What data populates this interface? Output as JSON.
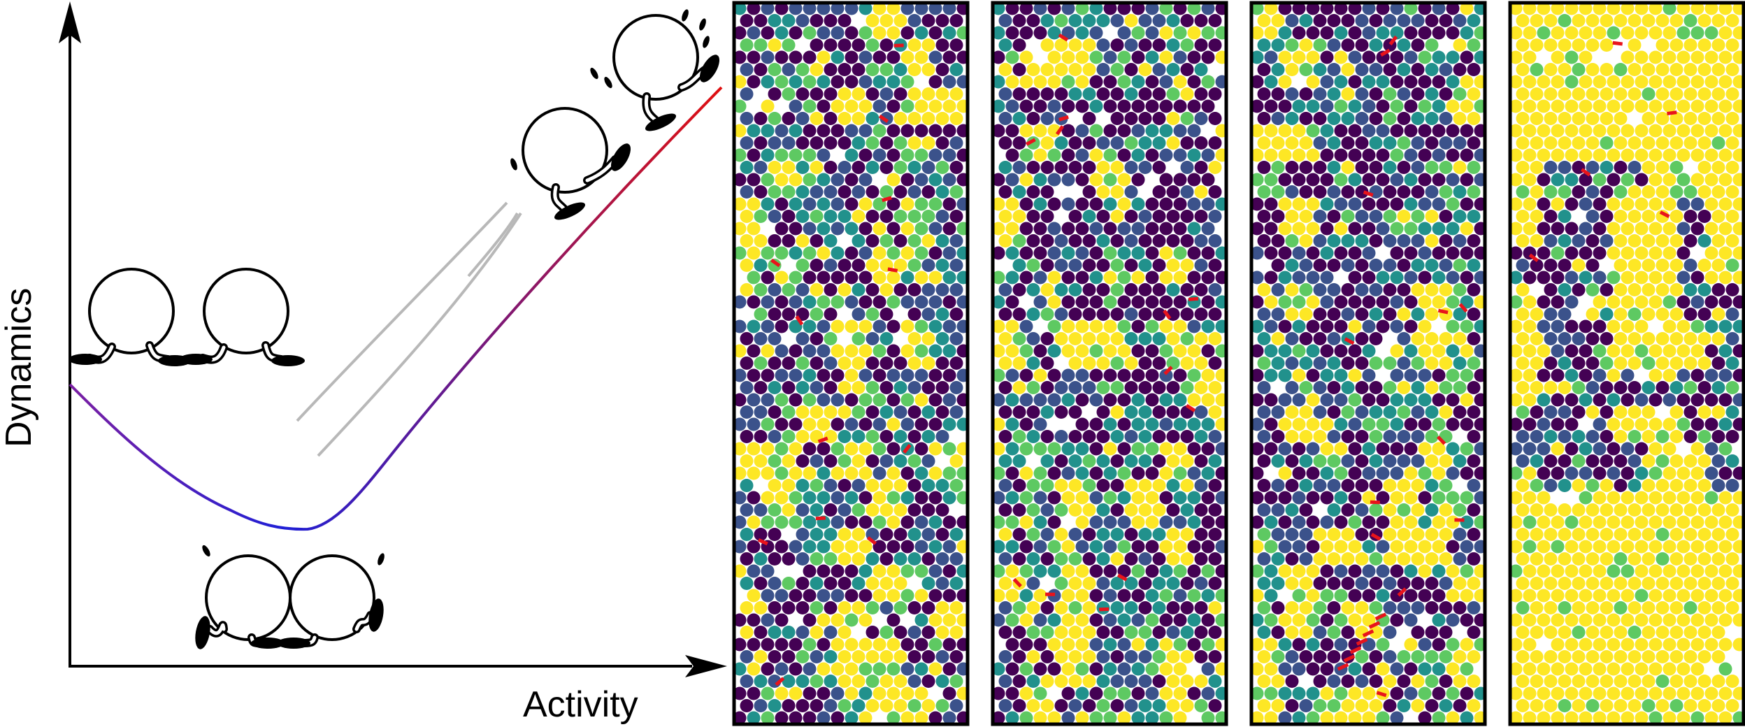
{
  "diagram": {
    "axes": {
      "x_label": "Activity",
      "y_label": "Dynamics"
    },
    "curve": {
      "start_color": "#7b1fa2",
      "min_color": "#1f1fd6",
      "end_color": "#e01010"
    },
    "motion_lines_color": "#b8b8b8",
    "panels": [
      {
        "dominant": "mixed"
      },
      {
        "dominant": "mixed"
      },
      {
        "dominant": "mixed"
      },
      {
        "dominant": "yellow"
      }
    ],
    "palette": [
      "#440154",
      "#3b528b",
      "#21918c",
      "#5ec962",
      "#fde725"
    ],
    "marker_color": "#e8141c"
  }
}
